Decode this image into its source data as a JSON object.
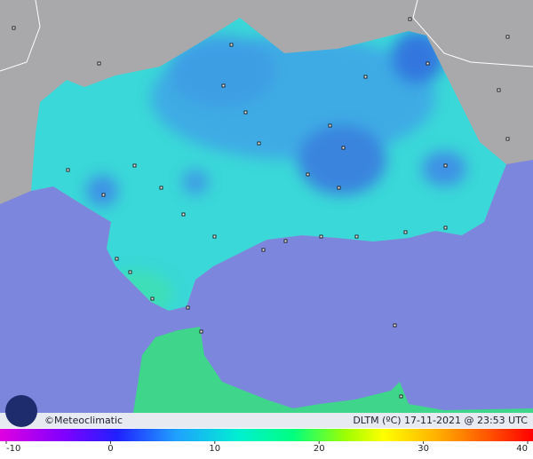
{
  "footer": {
    "credit": "©Meteoclimatic",
    "caption": "DLTM (ºC)  17-11-2021 @ 23:53 UTC"
  },
  "colorbar": {
    "ticks": [
      -10,
      0,
      10,
      20,
      30,
      40
    ]
  }
}
